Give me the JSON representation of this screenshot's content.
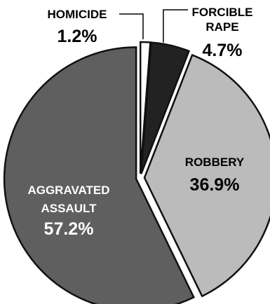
{
  "chart_data": {
    "type": "pie",
    "exploded": true,
    "start_angle_deg": 0,
    "direction": "clockwise",
    "slices": [
      {
        "label": "HOMICIDE",
        "label_lines": [
          "HOMICIDE"
        ],
        "value": 1.2,
        "value_text": "1.2%",
        "color": "#ffffff"
      },
      {
        "label": "FORCIBLE RAPE",
        "label_lines": [
          "FORCIBLE",
          "RAPE"
        ],
        "value": 4.7,
        "value_text": "4.7%",
        "color": "#222222"
      },
      {
        "label": "ROBBERY",
        "label_lines": [
          "ROBBERY"
        ],
        "value": 36.9,
        "value_text": "36.9%",
        "color": "#bbbbbb"
      },
      {
        "label": "AGGRAVATED ASSAULT",
        "label_lines": [
          "AGGRAVATED",
          "ASSAULT"
        ],
        "value": 57.2,
        "value_text": "57.2%",
        "color": "#5f5f5f"
      }
    ],
    "stroke_color": "#111111",
    "text_color": "#000000",
    "inside_text_color": "#ffffff",
    "title": ""
  }
}
